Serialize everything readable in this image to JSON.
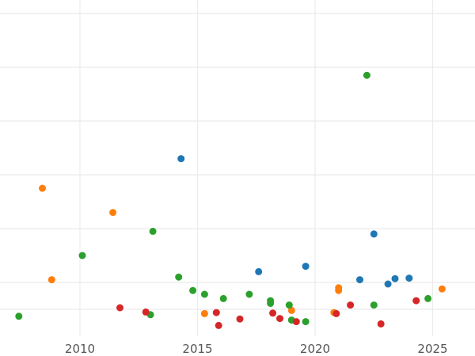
{
  "chart_data": {
    "type": "scatter",
    "title": "",
    "xlabel": "",
    "ylabel": "",
    "xlim": [
      2006.6,
      2026.8
    ],
    "ylim": [
      0.0,
      6.25
    ],
    "x_ticks": [
      2010,
      2015,
      2020,
      2025
    ],
    "x_tick_labels": [
      "2010",
      "2015",
      "2020",
      "2025"
    ],
    "y_gridlines": [
      0.5,
      1.0,
      2.0,
      3.0,
      4.0,
      5.0,
      6.0
    ],
    "grid": true,
    "legend": "none",
    "series": [
      {
        "color": "#1f77b4",
        "points": [
          {
            "x": 2014.3,
            "y": 3.3
          },
          {
            "x": 2017.6,
            "y": 1.2
          },
          {
            "x": 2019.6,
            "y": 1.3
          },
          {
            "x": 2021.9,
            "y": 1.05
          },
          {
            "x": 2022.5,
            "y": 1.9
          },
          {
            "x": 2023.1,
            "y": 0.97
          },
          {
            "x": 2023.4,
            "y": 1.07
          },
          {
            "x": 2024.0,
            "y": 1.08
          }
        ]
      },
      {
        "color": "#ff7f0e",
        "points": [
          {
            "x": 2008.4,
            "y": 2.75
          },
          {
            "x": 2008.8,
            "y": 1.05
          },
          {
            "x": 2011.4,
            "y": 2.3
          },
          {
            "x": 2015.3,
            "y": 0.42
          },
          {
            "x": 2019.0,
            "y": 0.48
          },
          {
            "x": 2020.8,
            "y": 0.44
          },
          {
            "x": 2021.0,
            "y": 0.9
          },
          {
            "x": 2021.0,
            "y": 0.85
          },
          {
            "x": 2025.4,
            "y": 0.88
          }
        ]
      },
      {
        "color": "#2ca02c",
        "points": [
          {
            "x": 2007.4,
            "y": 0.37
          },
          {
            "x": 2010.1,
            "y": 1.5
          },
          {
            "x": 2013.0,
            "y": 0.4
          },
          {
            "x": 2013.1,
            "y": 1.95
          },
          {
            "x": 2014.2,
            "y": 1.1
          },
          {
            "x": 2014.8,
            "y": 0.85
          },
          {
            "x": 2015.3,
            "y": 0.78
          },
          {
            "x": 2016.1,
            "y": 0.7
          },
          {
            "x": 2017.2,
            "y": 0.78
          },
          {
            "x": 2018.1,
            "y": 0.66
          },
          {
            "x": 2018.1,
            "y": 0.61
          },
          {
            "x": 2018.9,
            "y": 0.58
          },
          {
            "x": 2019.0,
            "y": 0.3
          },
          {
            "x": 2019.6,
            "y": 0.27
          },
          {
            "x": 2022.2,
            "y": 4.85
          },
          {
            "x": 2022.5,
            "y": 0.58
          },
          {
            "x": 2024.8,
            "y": 0.7
          }
        ]
      },
      {
        "color": "#d62728",
        "points": [
          {
            "x": 2011.7,
            "y": 0.53
          },
          {
            "x": 2012.8,
            "y": 0.45
          },
          {
            "x": 2015.8,
            "y": 0.44
          },
          {
            "x": 2015.9,
            "y": 0.2
          },
          {
            "x": 2016.8,
            "y": 0.32
          },
          {
            "x": 2018.2,
            "y": 0.43
          },
          {
            "x": 2018.5,
            "y": 0.33
          },
          {
            "x": 2019.2,
            "y": 0.27
          },
          {
            "x": 2020.9,
            "y": 0.42
          },
          {
            "x": 2021.5,
            "y": 0.58
          },
          {
            "x": 2022.8,
            "y": 0.23
          },
          {
            "x": 2024.3,
            "y": 0.66
          }
        ]
      }
    ]
  }
}
